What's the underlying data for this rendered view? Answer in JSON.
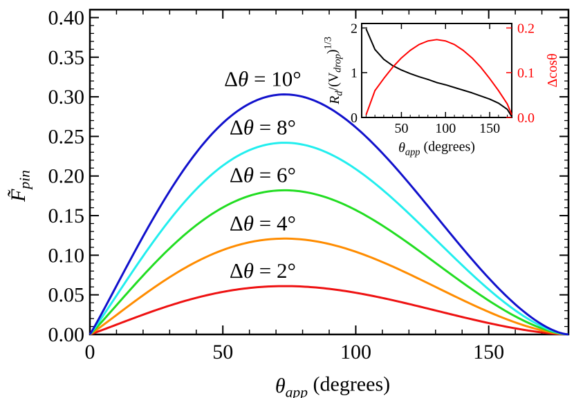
{
  "chart_data": [
    {
      "type": "line",
      "xlabel": "θ_app (degrees)",
      "ylabel": "F̃_pin",
      "xlim": [
        0,
        180
      ],
      "ylim": [
        0,
        0.41
      ],
      "xticks": [
        0,
        50,
        100,
        150
      ],
      "xtick_labels": [
        "0",
        "50",
        "100",
        "150"
      ],
      "yticks": [
        0,
        0.05,
        0.1,
        0.15,
        0.2,
        0.25,
        0.3,
        0.35,
        0.4
      ],
      "ytick_labels": [
        "0.00",
        "0.05",
        "0.10",
        "0.15",
        "0.20",
        "0.25",
        "0.30",
        "0.35",
        "0.40"
      ],
      "grid": false,
      "series": [
        {
          "name": "Δθ = 2°",
          "delta_theta_deg": 2,
          "peak_x": 65,
          "peak_y": 0.061,
          "color": "#ee1111"
        },
        {
          "name": "Δθ = 4°",
          "delta_theta_deg": 4,
          "peak_x": 65,
          "peak_y": 0.121,
          "color": "#ff8c00"
        },
        {
          "name": "Δθ = 6°",
          "delta_theta_deg": 6,
          "peak_x": 65,
          "peak_y": 0.182,
          "color": "#22dd22"
        },
        {
          "name": "Δθ = 8°",
          "delta_theta_deg": 8,
          "peak_x": 65,
          "peak_y": 0.242,
          "color": "#22eeee"
        },
        {
          "name": "Δθ = 10°",
          "delta_theta_deg": 10,
          "peak_x": 65,
          "peak_y": 0.303,
          "color": "#1111cc"
        }
      ],
      "annotations": [
        {
          "text": "Δθ = 10°",
          "series": "Δθ = 10°"
        },
        {
          "text": "Δθ = 8°",
          "series": "Δθ = 8°"
        },
        {
          "text": "Δθ = 6°",
          "series": "Δθ = 6°"
        },
        {
          "text": "Δθ = 4°",
          "series": "Δθ = 4°"
        },
        {
          "text": "Δθ = 2°",
          "series": "Δθ = 2°"
        }
      ]
    },
    {
      "type": "line",
      "role": "inset",
      "xlabel": "θ_app (degrees)",
      "ylabel_left": "R_d/(V_drop)^1/3",
      "ylabel_right": "Δcosθ",
      "xlim": [
        5,
        175
      ],
      "ylim_left": [
        0,
        2.1
      ],
      "ylim_right": [
        0,
        0.21
      ],
      "xticks": [
        50,
        100,
        150
      ],
      "xtick_labels": [
        "50",
        "100",
        "150"
      ],
      "yticks_left": [
        0,
        1,
        2
      ],
      "ytick_labels_left": [
        "0",
        "1",
        "2"
      ],
      "yticks_right": [
        0.0,
        0.1,
        0.2
      ],
      "ytick_labels_right": [
        "0.0",
        "0.1",
        "0.2"
      ],
      "series": [
        {
          "name": "R_d/(V_drop)^1/3",
          "axis": "left",
          "color": "#000000",
          "x": [
            10,
            20,
            30,
            40,
            50,
            60,
            70,
            80,
            90,
            100,
            110,
            120,
            130,
            140,
            150,
            160,
            170,
            175
          ],
          "y": [
            1.98,
            1.52,
            1.3,
            1.16,
            1.06,
            0.98,
            0.91,
            0.85,
            0.78,
            0.73,
            0.67,
            0.61,
            0.55,
            0.48,
            0.41,
            0.32,
            0.18,
            0.02
          ]
        },
        {
          "name": "Δcosθ",
          "axis": "right",
          "color": "#ff0000",
          "x": [
            10,
            20,
            30,
            40,
            50,
            60,
            70,
            80,
            90,
            100,
            110,
            120,
            130,
            140,
            150,
            160,
            170,
            175
          ],
          "y": [
            0.006,
            0.06,
            0.087,
            0.112,
            0.133,
            0.15,
            0.163,
            0.171,
            0.174,
            0.171,
            0.163,
            0.15,
            0.133,
            0.112,
            0.087,
            0.06,
            0.03,
            0.006
          ]
        }
      ]
    }
  ]
}
